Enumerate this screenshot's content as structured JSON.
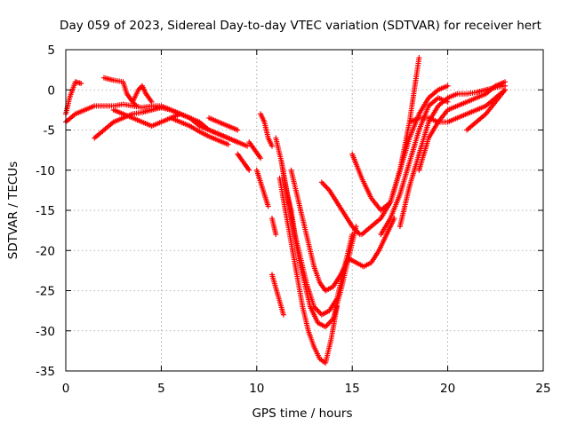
{
  "chart_data": {
    "type": "scatter",
    "title": "Day 059 of 2023, Sidereal Day-to-day VTEC variation (SDTVAR) for receiver hert",
    "xlabel": "GPS time / hours",
    "ylabel": "SDTVAR / TECUs",
    "xlim": [
      0,
      25
    ],
    "ylim": [
      -35,
      5
    ],
    "xticks": [
      0,
      5,
      10,
      15,
      20,
      25
    ],
    "yticks": [
      5,
      0,
      -5,
      -10,
      -15,
      -20,
      -25,
      -30,
      -35
    ],
    "grid": true,
    "marker": "plus",
    "color": "#ff0000",
    "series": [
      {
        "x": [
          0.0,
          0.5,
          1.0,
          1.5,
          2.0,
          2.5,
          3.0,
          3.5,
          4.0,
          4.5,
          5.0,
          5.5,
          6.0,
          6.5,
          7.0,
          7.5,
          8.0,
          8.5,
          9.0,
          9.5
        ],
        "y": [
          -4,
          -3,
          -2.5,
          -2,
          -2,
          -2,
          -1.8,
          -2,
          -2.2,
          -2,
          -2,
          -2.5,
          -3,
          -3.5,
          -4,
          -5,
          -5.5,
          -6,
          -6.5,
          -7
        ]
      },
      {
        "x": [
          1.5,
          2.0,
          2.5,
          3.0,
          3.5,
          4.0,
          4.5,
          5.0,
          5.5,
          6.0,
          6.5,
          7.0,
          7.5,
          8.0,
          8.5,
          9.0
        ],
        "y": [
          -6,
          -5,
          -4,
          -3.5,
          -3,
          -2.8,
          -2.5,
          -2.2,
          -2.5,
          -3,
          -3.5,
          -4.5,
          -5,
          -5.5,
          -6,
          -6.5
        ]
      },
      {
        "x": [
          0.0,
          0.2,
          0.5,
          0.8
        ],
        "y": [
          -3,
          -1,
          1,
          0.8
        ]
      },
      {
        "x": [
          2.0,
          2.5,
          3.0,
          3.2,
          3.5,
          3.7
        ],
        "y": [
          1.5,
          1.2,
          1,
          -0.5,
          -1.5,
          -2
        ]
      },
      {
        "x": [
          3.5,
          3.8,
          4.0,
          4.2,
          4.5
        ],
        "y": [
          -1.5,
          0,
          0.5,
          -0.5,
          -1.5
        ]
      },
      {
        "x": [
          2.5,
          3.0,
          3.5,
          4.0,
          4.5,
          5.0,
          5.5,
          6.0
        ],
        "y": [
          -2.5,
          -3,
          -3.5,
          -4,
          -4.5,
          -4,
          -3.5,
          -3
        ]
      },
      {
        "x": [
          5.5,
          6.0,
          6.5,
          7.0,
          7.5,
          8.0,
          8.5
        ],
        "y": [
          -3.5,
          -4,
          -4.5,
          -5.2,
          -5.8,
          -6.3,
          -6.8
        ]
      },
      {
        "x": [
          7.5,
          8.0,
          8.5,
          9.0
        ],
        "y": [
          -3.5,
          -4,
          -4.5,
          -5
        ]
      },
      {
        "x": [
          9.0,
          9.3,
          9.6
        ],
        "y": [
          -8,
          -9,
          -10
        ]
      },
      {
        "x": [
          9.6,
          9.9,
          10.2
        ],
        "y": [
          -6.5,
          -7.5,
          -8.5
        ]
      },
      {
        "x": [
          10.2,
          10.4,
          10.6,
          10.8
        ],
        "y": [
          -3,
          -4,
          -6,
          -7
        ]
      },
      {
        "x": [
          10.0,
          10.2,
          10.4,
          10.6
        ],
        "y": [
          -10,
          -11.5,
          -13,
          -14.5
        ]
      },
      {
        "x": [
          10.8,
          11.0
        ],
        "y": [
          -16,
          -18
        ]
      },
      {
        "x": [
          11.0,
          11.3,
          11.5,
          11.8,
          12.0,
          12.3,
          12.6,
          13.0,
          13.4,
          13.8,
          14.2,
          14.6,
          15.0
        ],
        "y": [
          -6,
          -9,
          -12,
          -15,
          -18,
          -21,
          -24,
          -27,
          -28,
          -27.5,
          -26,
          -22,
          -18
        ]
      },
      {
        "x": [
          11.3,
          11.6,
          11.9,
          12.2,
          12.5,
          12.8,
          13.2,
          13.6,
          14.0,
          14.4,
          14.8,
          15.2
        ],
        "y": [
          -9,
          -13,
          -17,
          -21,
          -24,
          -27,
          -29,
          -29.5,
          -28.5,
          -25,
          -21,
          -17
        ]
      },
      {
        "x": [
          11.2,
          11.5,
          11.8,
          12.1,
          12.4,
          12.7,
          13.0,
          13.3,
          13.6,
          13.9,
          14.2
        ],
        "y": [
          -11,
          -15,
          -19,
          -23,
          -27,
          -30,
          -32,
          -33.5,
          -34,
          -31,
          -27
        ]
      },
      {
        "x": [
          11.8,
          12.1,
          12.4,
          12.7,
          13.0,
          13.3,
          13.6,
          14.0,
          14.4,
          14.8
        ],
        "y": [
          -10,
          -13,
          -16,
          -19,
          -22,
          -24,
          -25,
          -24.5,
          -23,
          -21
        ]
      },
      {
        "x": [
          10.8,
          11.1,
          11.4
        ],
        "y": [
          -23,
          -25.5,
          -28
        ]
      },
      {
        "x": [
          13.4,
          13.8,
          14.2,
          14.6,
          15.0,
          15.4
        ],
        "y": [
          -11.5,
          -12.5,
          -14,
          -15.5,
          -17,
          -18
        ]
      },
      {
        "x": [
          14.8,
          15.2,
          15.6,
          16.0,
          16.4,
          16.8,
          17.2
        ],
        "y": [
          -21,
          -21.5,
          -22,
          -21.5,
          -20,
          -18,
          -16
        ]
      },
      {
        "x": [
          15.0,
          15.5,
          16.0,
          16.5,
          17.0,
          17.5,
          18.0,
          18.5
        ],
        "y": [
          -8,
          -11,
          -13.5,
          -15,
          -14,
          -10,
          -4,
          4
        ]
      },
      {
        "x": [
          15.5,
          16.0,
          16.5,
          17.0,
          17.5,
          18.0,
          18.5,
          19.0,
          19.5,
          20.0
        ],
        "y": [
          -18,
          -17,
          -16,
          -14,
          -10,
          -6,
          -3,
          -1,
          0,
          0.5
        ]
      },
      {
        "x": [
          16.5,
          17.0,
          17.5,
          18.0,
          18.5,
          19.0,
          19.5,
          20.0
        ],
        "y": [
          -18,
          -16,
          -13,
          -9,
          -5,
          -2,
          -1,
          -1.5
        ]
      },
      {
        "x": [
          17.5,
          18.0,
          18.5,
          19.0,
          19.5,
          20.0,
          20.5,
          21.0,
          21.5,
          22.0,
          22.5,
          23.0
        ],
        "y": [
          -17,
          -12,
          -8,
          -4,
          -2,
          -1,
          -0.5,
          -0.5,
          -0.3,
          0,
          0.3,
          0.5
        ]
      },
      {
        "x": [
          18.5,
          19.0,
          19.5,
          20.0,
          20.5,
          21.0,
          21.5,
          22.0,
          22.5,
          23.0
        ],
        "y": [
          -10,
          -6,
          -4,
          -2.5,
          -2,
          -1.5,
          -1,
          -0.5,
          0.5,
          1
        ]
      },
      {
        "x": [
          18.0,
          18.5,
          19.0,
          19.5,
          20.0,
          20.5,
          21.0,
          21.5,
          22.0,
          22.5,
          23.0
        ],
        "y": [
          -4,
          -3.5,
          -3.5,
          -4,
          -4,
          -3.5,
          -3,
          -2.5,
          -2,
          -1,
          0
        ]
      },
      {
        "x": [
          21.0,
          21.5,
          22.0,
          22.5,
          23.0
        ],
        "y": [
          -5,
          -4,
          -3,
          -1.5,
          0
        ]
      }
    ]
  }
}
